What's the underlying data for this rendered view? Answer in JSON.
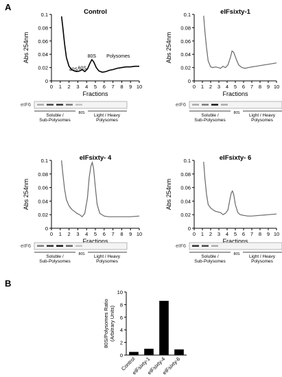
{
  "panel_labels": {
    "a": "A",
    "b": "B"
  },
  "blot_text": {
    "protein": "eIF6",
    "lane_80s": "80S",
    "soluble_line1": "Soluble /",
    "soluble_line2": "Sub-Polysomes",
    "light_line1": "Light / Heavy",
    "light_line2": "Polysomes"
  },
  "chart_data": [
    {
      "type": "line",
      "title": "Control",
      "xlabel": "Fractions",
      "ylabel": "Abs 254nm",
      "xlim": [
        0,
        10
      ],
      "ylim": [
        0,
        0.1
      ],
      "xticks": [
        "0",
        "1",
        "2",
        "3",
        "4",
        "5",
        "6",
        "7",
        "8",
        "9",
        "10"
      ],
      "yticks": [
        "0",
        "0.02",
        "0.04",
        "0.06",
        "0.08",
        "0.1"
      ],
      "color": "#000000",
      "annotations": [
        {
          "text": "40S",
          "x": 2.5,
          "y": 0.015
        },
        {
          "text": "60S",
          "x": 3.5,
          "y": 0.017
        },
        {
          "text": "80S",
          "x": 4.6,
          "y": 0.035
        },
        {
          "text": "Polysomes",
          "x": 7.6,
          "y": 0.035
        }
      ],
      "x": [
        1.15,
        1.3,
        1.5,
        1.7,
        2.0,
        2.3,
        2.6,
        2.9,
        3.2,
        3.5,
        3.8,
        4.1,
        4.4,
        4.6,
        4.8,
        5.1,
        5.4,
        5.8,
        6.2,
        6.6,
        7.0,
        7.5,
        8.0,
        8.5,
        9.0,
        9.5,
        10.0
      ],
      "y": [
        0.097,
        0.08,
        0.055,
        0.035,
        0.022,
        0.017,
        0.015,
        0.014,
        0.015,
        0.017,
        0.014,
        0.018,
        0.027,
        0.032,
        0.029,
        0.02,
        0.015,
        0.013,
        0.014,
        0.016,
        0.017,
        0.019,
        0.02,
        0.021,
        0.021,
        0.022,
        0.022
      ]
    },
    {
      "type": "line",
      "title": "eIFsixty-1",
      "xlabel": "Fractions",
      "ylabel": "Abs 254nm",
      "xlim": [
        0,
        10
      ],
      "ylim": [
        0,
        0.1
      ],
      "xticks": [
        "0",
        "1",
        "2",
        "3",
        "4",
        "5",
        "6",
        "7",
        "8",
        "9",
        "10"
      ],
      "yticks": [
        "0",
        "0.02",
        "0.04",
        "0.06",
        "0.08",
        "0.1"
      ],
      "color": "#666666",
      "x": [
        1.15,
        1.3,
        1.5,
        1.7,
        2.0,
        2.3,
        2.6,
        2.9,
        3.2,
        3.5,
        3.8,
        4.1,
        4.4,
        4.6,
        4.8,
        5.1,
        5.4,
        5.8,
        6.2,
        6.6,
        7.0,
        7.5,
        8.0,
        8.5,
        9.0,
        9.5,
        10.0
      ],
      "y": [
        0.098,
        0.075,
        0.05,
        0.03,
        0.021,
        0.02,
        0.021,
        0.02,
        0.019,
        0.022,
        0.02,
        0.024,
        0.035,
        0.045,
        0.043,
        0.033,
        0.024,
        0.02,
        0.019,
        0.02,
        0.021,
        0.022,
        0.023,
        0.024,
        0.025,
        0.026,
        0.027
      ]
    },
    {
      "type": "line",
      "title": "eIFsixty- 4",
      "xlabel": "Fractions",
      "ylabel": "Abs 254nm",
      "xlim": [
        0,
        10
      ],
      "ylim": [
        0,
        0.1
      ],
      "xticks": [
        "0",
        "1",
        "2",
        "3",
        "4",
        "5",
        "6",
        "7",
        "8",
        "9",
        "10"
      ],
      "yticks": [
        "0",
        "0.02",
        "0.04",
        "0.06",
        "0.08",
        "0.1"
      ],
      "color": "#666666",
      "x": [
        1.15,
        1.3,
        1.5,
        1.7,
        2.0,
        2.3,
        2.6,
        2.9,
        3.2,
        3.5,
        3.8,
        4.1,
        4.3,
        4.5,
        4.65,
        4.8,
        5.0,
        5.2,
        5.5,
        6.0,
        6.5,
        7.0,
        8.0,
        9.0,
        10.0
      ],
      "y": [
        0.1,
        0.08,
        0.057,
        0.042,
        0.033,
        0.028,
        0.025,
        0.022,
        0.02,
        0.017,
        0.022,
        0.045,
        0.075,
        0.092,
        0.097,
        0.088,
        0.06,
        0.035,
        0.022,
        0.018,
        0.017,
        0.017,
        0.017,
        0.017,
        0.018
      ]
    },
    {
      "type": "line",
      "title": "eIFsixty- 6",
      "xlabel": "Fractions",
      "ylabel": "Abs 254nm",
      "xlim": [
        0,
        10
      ],
      "ylim": [
        0,
        0.1
      ],
      "xticks": [
        "0",
        "1",
        "2",
        "3",
        "4",
        "5",
        "6",
        "7",
        "8",
        "9",
        "10"
      ],
      "yticks": [
        "0",
        "0.02",
        "0.04",
        "0.06",
        "0.08",
        "0.1"
      ],
      "color": "#666666",
      "x": [
        1.15,
        1.3,
        1.5,
        1.7,
        2.0,
        2.3,
        2.6,
        2.9,
        3.2,
        3.5,
        3.8,
        4.1,
        4.3,
        4.5,
        4.65,
        4.8,
        5.0,
        5.3,
        5.6,
        6.0,
        6.5,
        7.0,
        8.0,
        9.0,
        10.0
      ],
      "y": [
        0.098,
        0.074,
        0.05,
        0.035,
        0.03,
        0.027,
        0.025,
        0.024,
        0.023,
        0.02,
        0.022,
        0.027,
        0.04,
        0.052,
        0.055,
        0.05,
        0.035,
        0.023,
        0.02,
        0.019,
        0.018,
        0.018,
        0.019,
        0.02,
        0.021
      ]
    },
    {
      "type": "bar",
      "xlabel": "",
      "ylabel": "80S/Polysomes Ratio\n(Arbitrary Units)",
      "categories": [
        "Control",
        "eIFsixty-1",
        "eIFsixty-4",
        "eIFsixty-6"
      ],
      "values": [
        0.5,
        1.0,
        8.6,
        0.9
      ],
      "ylim": [
        0,
        10
      ],
      "yticks": [
        "0",
        "2",
        "4",
        "6",
        "8",
        "10"
      ],
      "color": "#000000"
    }
  ]
}
